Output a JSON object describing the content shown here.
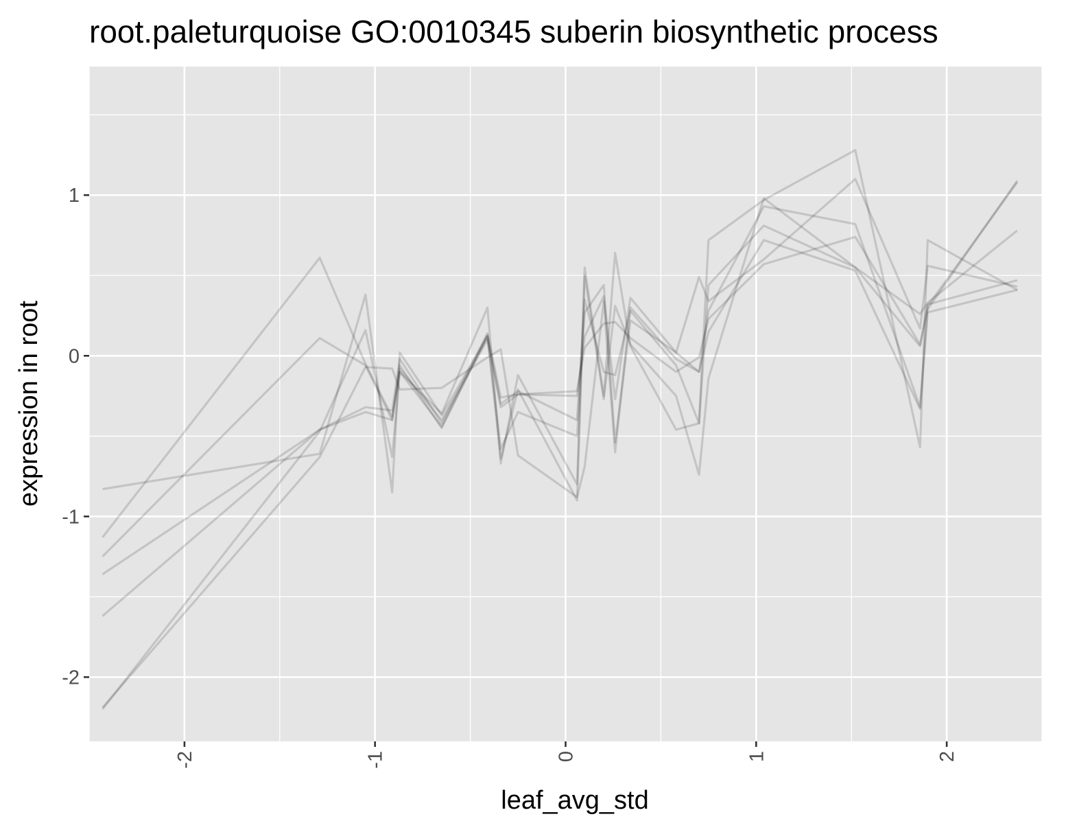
{
  "chart_data": {
    "type": "line",
    "title": "root.paleturquoise GO:0010345 suberin biosynthetic process",
    "xlabel": "leaf_avg_std",
    "ylabel": "expression in root",
    "xlim": [
      -2.5,
      2.5
    ],
    "ylim": [
      -2.4,
      1.8
    ],
    "x_ticks": [
      -2,
      -1,
      0,
      1,
      2
    ],
    "x_tick_labels": [
      "-2",
      "-1",
      "0",
      "1",
      "2"
    ],
    "y_ticks": [
      -2,
      -1,
      0,
      1
    ],
    "y_tick_labels": [
      "-2",
      "-1",
      "0",
      "1"
    ],
    "grid": true,
    "background": "#e5e5e5",
    "line_color": "#000000",
    "x": [
      -2.43,
      -1.29,
      -1.05,
      -0.91,
      -0.87,
      -0.65,
      -0.41,
      -0.34,
      -0.25,
      0.06,
      0.1,
      0.2,
      0.26,
      0.34,
      0.58,
      0.7,
      0.75,
      1.04,
      1.52,
      1.86,
      1.9,
      2.37
    ],
    "series": [
      {
        "values": [
          -0.83,
          -0.61,
          0.38,
          -0.85,
          0.02,
          -0.37,
          0.12,
          -0.64,
          -0.21,
          -0.9,
          0.55,
          -0.25,
          0.64,
          0.06,
          -0.46,
          -0.42,
          0.72,
          0.97,
          1.28,
          -0.57,
          0.72,
          0.41
        ]
      },
      {
        "values": [
          -1.13,
          0.61,
          -0.05,
          -0.38,
          -0.1,
          -0.44,
          0.12,
          -0.3,
          -0.22,
          -0.4,
          0.35,
          -0.1,
          -0.12,
          0.28,
          -0.06,
          -0.42,
          0.44,
          0.81,
          0.55,
          0.06,
          0.32,
          0.47
        ]
      },
      {
        "values": [
          -1.25,
          0.11,
          -0.06,
          -0.4,
          -0.06,
          -0.45,
          0.13,
          -0.58,
          -0.35,
          -0.5,
          0.27,
          0.44,
          -0.54,
          0.22,
          0.02,
          0.49,
          0.34,
          0.6,
          1.1,
          0.17,
          0.56,
          0.43
        ]
      },
      {
        "values": [
          -1.36,
          -0.46,
          -0.32,
          -0.34,
          -0.02,
          -0.42,
          0.14,
          -0.26,
          -0.24,
          -0.22,
          0.05,
          0.2,
          0.21,
          0.11,
          -0.1,
          -0.01,
          0.23,
          0.57,
          0.74,
          0.07,
          0.29,
          1.09
        ]
      },
      {
        "values": [
          -1.62,
          -0.46,
          -0.35,
          -0.4,
          -0.08,
          -0.4,
          0.1,
          -0.32,
          -0.24,
          -0.25,
          0.12,
          0.37,
          -0.27,
          0.36,
          0.02,
          -0.1,
          0.28,
          0.93,
          0.82,
          -0.32,
          0.31,
          1.08
        ]
      },
      {
        "values": [
          -2.2,
          -0.47,
          0.16,
          -0.63,
          -0.1,
          -0.36,
          0.3,
          -0.67,
          -0.12,
          -0.8,
          0.5,
          -0.27,
          0.31,
          0.07,
          -0.25,
          -0.74,
          -0.14,
          0.98,
          0.55,
          0.26,
          0.33,
          0.78
        ]
      },
      {
        "values": [
          -2.19,
          -0.63,
          -0.07,
          -0.08,
          -0.21,
          -0.2,
          -0.01,
          0.04,
          -0.62,
          -0.88,
          -0.69,
          0.34,
          -0.6,
          0.3,
          -0.02,
          -0.1,
          0.15,
          0.72,
          0.53,
          -0.33,
          0.27,
          0.41
        ]
      }
    ]
  }
}
